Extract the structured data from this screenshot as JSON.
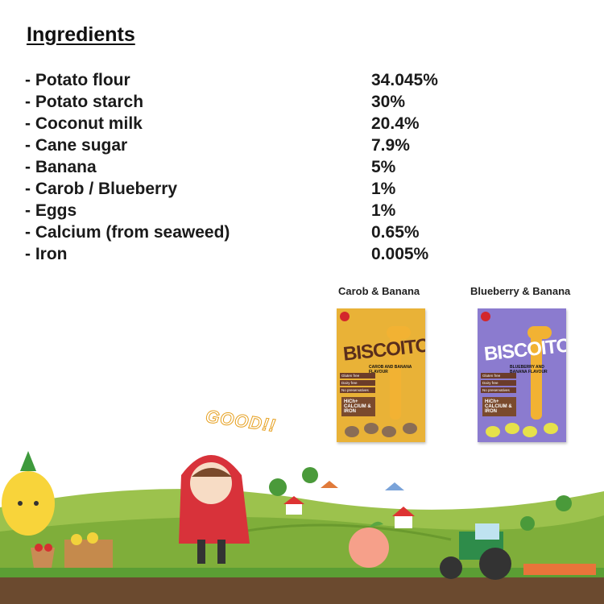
{
  "title": "Ingredients",
  "ingredients": [
    {
      "name": "- Potato flour",
      "percent": "34.045%"
    },
    {
      "name": "- Potato starch",
      "percent": "30%"
    },
    {
      "name": "- Coconut milk",
      "percent": "20.4%"
    },
    {
      "name": "- Cane sugar",
      "percent": "7.9%"
    },
    {
      "name": "- Banana",
      "percent": "5%"
    },
    {
      "name": "- Carob / Blueberry",
      "percent": "1%"
    },
    {
      "name": "- Eggs",
      "percent": "1%"
    },
    {
      "name": "- Calcium (from seaweed)",
      "percent": "0.65%"
    },
    {
      "name": "- Iron",
      "percent": "0.005%"
    }
  ],
  "products": [
    {
      "caption": "Carob & Banana",
      "brand": "BISCOITO",
      "flavour": "CAROB AND BANANA FLAVOUR",
      "claims": [
        "Gluten free",
        "Dairy free",
        "No preservatives"
      ],
      "badge": "HiCh+ CALCIUM & IRON",
      "color": "#e9b237",
      "brand_color": "#5a2e1c",
      "ball_color": "#8a6d55"
    },
    {
      "caption": "Blueberry & Banana",
      "brand": "BISCOITO",
      "flavour": "BLUEBERRY AND BANANA FLAVOUR",
      "claims": [
        "Gluten free",
        "Dairy free",
        "No preservatives"
      ],
      "badge": "HiCh+ CALCIUM & IRON",
      "color": "#8b7bcf",
      "brand_color": "#ffffff",
      "ball_color": "#e6e14a"
    }
  ],
  "illustration": {
    "exclamation": "GOOD!!"
  }
}
